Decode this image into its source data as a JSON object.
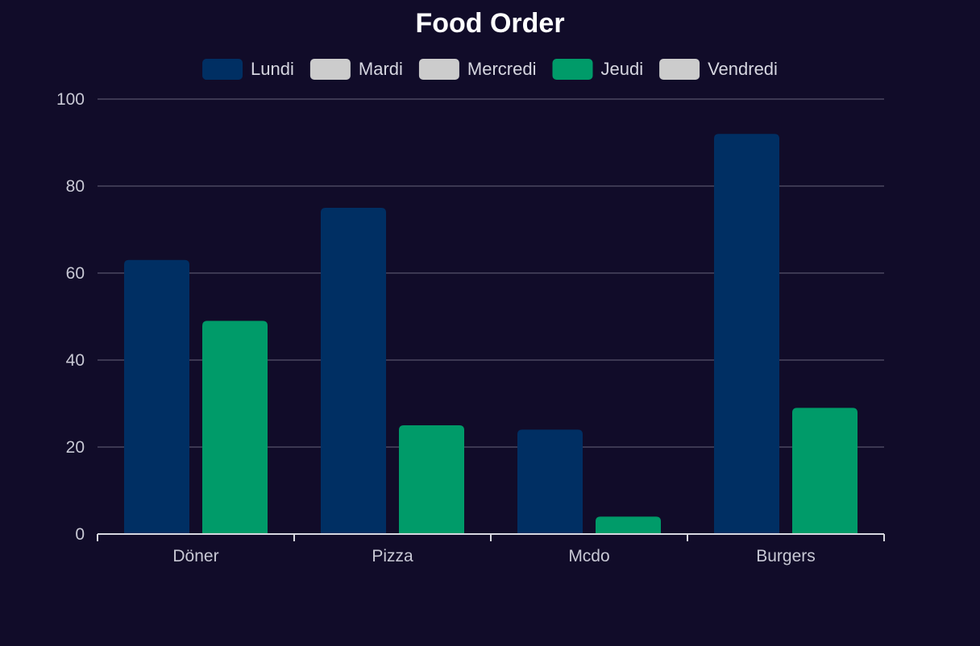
{
  "chart_data": {
    "type": "bar",
    "title": "Food Order",
    "xlabel": "",
    "ylabel": "",
    "categories": [
      "Döner",
      "Pizza",
      "Mcdo",
      "Burgers"
    ],
    "ylim": [
      0,
      100
    ],
    "yticks": [
      0,
      20,
      40,
      60,
      80,
      100
    ],
    "grid": true,
    "legend_position": "top",
    "legend": [
      {
        "name": "Lundi",
        "color": "#002f63",
        "visible": true
      },
      {
        "name": "Mardi",
        "color": "#cccccc",
        "visible": false
      },
      {
        "name": "Mercredi",
        "color": "#cccccc",
        "visible": false
      },
      {
        "name": "Jeudi",
        "color": "#009b69",
        "visible": true
      },
      {
        "name": "Vendredi",
        "color": "#cccccc",
        "visible": false
      }
    ],
    "series": [
      {
        "name": "Lundi",
        "color": "#002f63",
        "values": [
          63,
          75,
          24,
          92
        ]
      },
      {
        "name": "Jeudi",
        "color": "#009b69",
        "values": [
          49,
          25,
          4,
          29
        ]
      }
    ]
  },
  "colors": {
    "background": "#110c29",
    "grid": "#4a4660",
    "axis": "#d8d8e0",
    "title": "#ffffff",
    "text": "#d6d6e0"
  }
}
